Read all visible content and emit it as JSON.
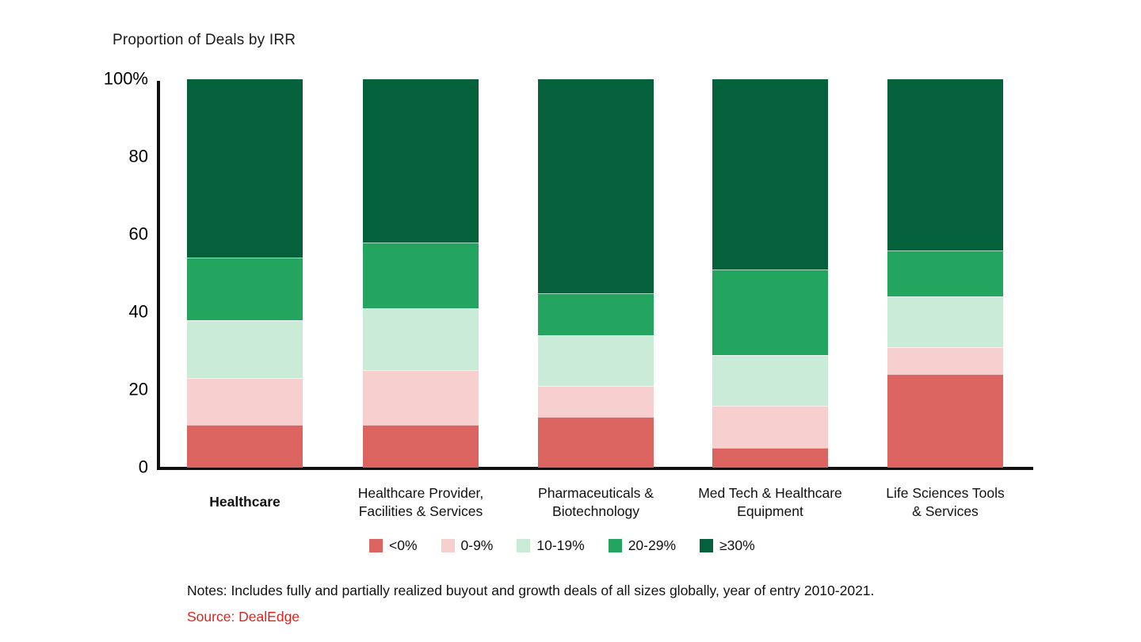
{
  "title_text": "Proportion of Deals by IRR",
  "notes": "Notes: Includes fully and partially realized buyout and growth deals of all sizes globally, year of entry 2010-2021.",
  "source": "Source: DealEdge",
  "source_color": "#E0231C",
  "axis_color": "#111111",
  "chart_data": {
    "type": "bar",
    "stacked": true,
    "title": "Proportion of Deals by IRR",
    "ylim": [
      0,
      100
    ],
    "unit": "%",
    "grid": false,
    "legend_position": "bottom",
    "y_ticks": [
      {
        "value": 100,
        "label": "100%"
      },
      {
        "value": 80,
        "label": "80"
      },
      {
        "value": 60,
        "label": "60"
      },
      {
        "value": 40,
        "label": "40"
      },
      {
        "value": 20,
        "label": "20"
      },
      {
        "value": 0,
        "label": "0"
      }
    ],
    "categories": [
      {
        "name": "Healthcare",
        "lines": [
          "Healthcare"
        ],
        "bold": true
      },
      {
        "name": "Healthcare Provider, Facilities & Services",
        "lines": [
          "Healthcare Provider,",
          "Facilities & Services"
        ],
        "bold": false
      },
      {
        "name": "Pharmaceuticals & Biotechnology",
        "lines": [
          "Pharmaceuticals &",
          "Biotechnology"
        ],
        "bold": false
      },
      {
        "name": "Med Tech & Healthcare Equipment",
        "lines": [
          "Med Tech & Healthcare",
          "Equipment"
        ],
        "bold": false
      },
      {
        "name": "Life Sciences Tools & Services",
        "lines": [
          "Life Sciences Tools",
          "& Services"
        ],
        "bold": false
      }
    ],
    "series": [
      {
        "name": "<0%",
        "color": "#DC6460",
        "values": [
          11,
          11,
          13,
          5,
          24
        ]
      },
      {
        "name": "0-9%",
        "color": "#F7CFCE",
        "values": [
          12,
          14,
          8,
          11,
          7
        ]
      },
      {
        "name": "10-19%",
        "color": "#CBEBD9",
        "values": [
          15,
          16,
          13,
          13,
          13
        ]
      },
      {
        "name": "20-29%",
        "color": "#23A45F",
        "values": [
          16,
          17,
          11,
          22,
          12
        ]
      },
      {
        "name": "≥30%",
        "color": "#05603C",
        "values": [
          46,
          42,
          55,
          49,
          44
        ]
      }
    ]
  }
}
